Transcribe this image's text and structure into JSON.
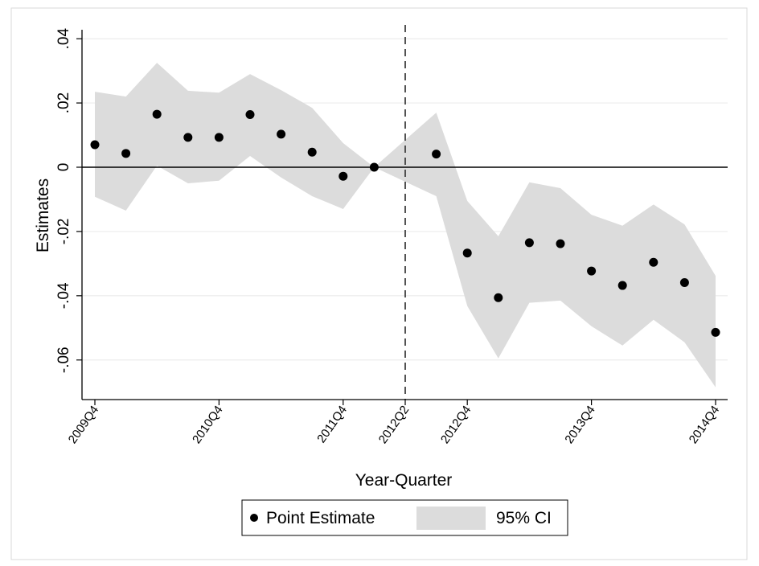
{
  "chart_data": {
    "type": "scatter",
    "title": "",
    "xlabel": "Year-Quarter",
    "ylabel": "Estimates",
    "x": [
      "2009Q4",
      "2010Q1",
      "2010Q2",
      "2010Q3",
      "2010Q4",
      "2011Q1",
      "2011Q2",
      "2011Q3",
      "2011Q4",
      "2012Q1",
      "2012Q2",
      "2012Q3",
      "2012Q4",
      "2013Q1",
      "2013Q2",
      "2013Q3",
      "2013Q4",
      "2014Q1",
      "2014Q2",
      "2014Q3",
      "2014Q4"
    ],
    "xticks": [
      "2009Q4",
      "2010Q4",
      "2011Q4",
      "2012Q2",
      "2012Q4",
      "2013Q4",
      "2014Q4"
    ],
    "ylim": [
      -0.072,
      0.04
    ],
    "yticks": [
      0.04,
      0.02,
      0,
      -0.02,
      -0.04,
      -0.06
    ],
    "ytick_labels": [
      ".04",
      ".02",
      "0",
      "-.02",
      "-.04",
      "-.06"
    ],
    "reference_line_x": "2012Q2",
    "reference_line_y": 0,
    "series": [
      {
        "name": "Point Estimate",
        "x": [
          "2009Q4",
          "2010Q1",
          "2010Q2",
          "2010Q3",
          "2010Q4",
          "2011Q1",
          "2011Q2",
          "2011Q3",
          "2011Q4",
          "2012Q1",
          "2012Q3",
          "2012Q4",
          "2013Q1",
          "2013Q2",
          "2013Q3",
          "2013Q4",
          "2014Q1",
          "2014Q2",
          "2014Q3",
          "2014Q4"
        ],
        "values": [
          0.007,
          0.0043,
          0.0165,
          0.0093,
          0.0093,
          0.0164,
          0.0103,
          0.0047,
          -0.0028,
          0.0,
          0.0041,
          -0.0267,
          -0.0406,
          -0.0235,
          -0.0238,
          -0.0323,
          -0.0368,
          -0.0296,
          -0.0359,
          -0.0514
        ]
      },
      {
        "name": "95% CI",
        "x": [
          "2009Q4",
          "2010Q1",
          "2010Q2",
          "2010Q3",
          "2010Q4",
          "2011Q1",
          "2011Q2",
          "2011Q3",
          "2011Q4",
          "2012Q1",
          "2012Q2",
          "2012Q3",
          "2012Q4",
          "2013Q1",
          "2013Q2",
          "2013Q3",
          "2013Q4",
          "2014Q1",
          "2014Q2",
          "2014Q3",
          "2014Q4"
        ],
        "upper": [
          0.0235,
          0.022,
          0.0325,
          0.0238,
          0.0232,
          0.029,
          0.024,
          0.0185,
          0.0075,
          0.0,
          0.0085,
          0.017,
          -0.0105,
          -0.0215,
          -0.0047,
          -0.0065,
          -0.0148,
          -0.0182,
          -0.0116,
          -0.0178,
          -0.0338
        ],
        "lower": [
          -0.0092,
          -0.0135,
          0.0005,
          -0.005,
          -0.0042,
          0.0035,
          -0.0032,
          -0.009,
          -0.013,
          0.0,
          -0.0045,
          -0.009,
          -0.0432,
          -0.0595,
          -0.0422,
          -0.0415,
          -0.0495,
          -0.0555,
          -0.0475,
          -0.0545,
          -0.0685
        ]
      }
    ],
    "grid": true,
    "legend": {
      "position": "bottom",
      "entries": [
        {
          "label": "Point Estimate",
          "symbol": "marker"
        },
        {
          "label": "95% CI",
          "symbol": "area"
        }
      ]
    },
    "colors": {
      "marker": "#000000",
      "band": "#dcdcdc",
      "gridline": "#ececec",
      "axis": "#000000",
      "frame_border": "#d9d9d9"
    }
  }
}
